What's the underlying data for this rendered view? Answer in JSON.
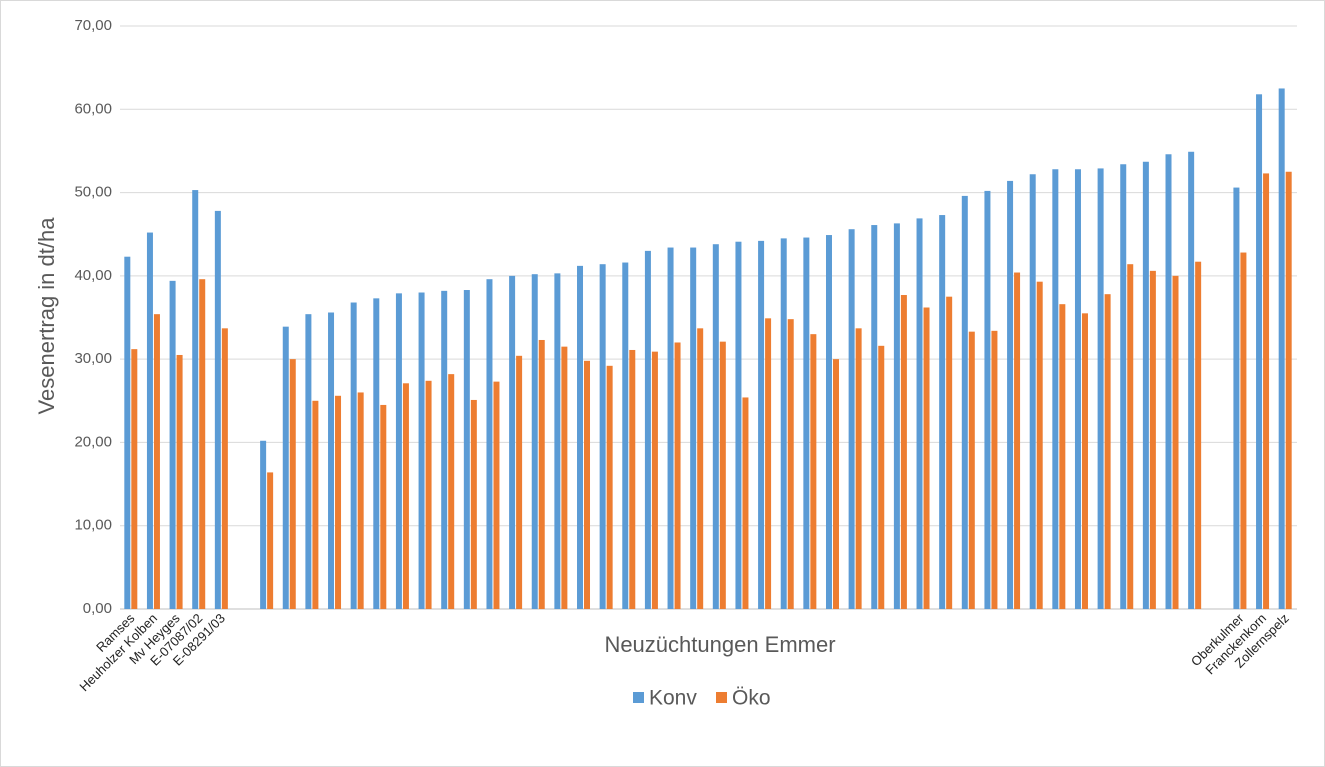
{
  "chart_data": {
    "type": "bar",
    "x_label": "Neuzüchtungen Emmer",
    "y_label": "Vesenertrag in dt/ha",
    "categories": [
      "Ramses",
      "Heuholzer Kolben",
      "Mv Heyges",
      "E-07087/02",
      "E-08291/03",
      null,
      null,
      null,
      null,
      null,
      null,
      null,
      null,
      null,
      null,
      null,
      null,
      null,
      null,
      null,
      null,
      null,
      null,
      null,
      null,
      null,
      null,
      null,
      null,
      null,
      null,
      null,
      null,
      null,
      null,
      null,
      null,
      null,
      null,
      null,
      null,
      null,
      null,
      null,
      null,
      null,
      null,
      null,
      null,
      "Oberkulmer",
      "Franckenkorn",
      "Zollernspelz"
    ],
    "series": [
      {
        "name": "Konv",
        "color": "#5b9bd5",
        "values": [
          42.3,
          45.2,
          39.4,
          50.3,
          47.8,
          null,
          20.2,
          33.9,
          35.4,
          35.6,
          36.8,
          37.3,
          37.9,
          38.0,
          38.2,
          38.3,
          39.6,
          40.0,
          40.2,
          40.3,
          41.2,
          41.4,
          41.6,
          43.0,
          43.4,
          43.4,
          43.8,
          44.1,
          44.2,
          44.5,
          44.6,
          44.9,
          45.6,
          46.1,
          46.3,
          46.9,
          47.3,
          49.6,
          50.2,
          51.4,
          52.2,
          52.8,
          52.8,
          52.9,
          53.4,
          53.7,
          54.6,
          54.9,
          null,
          50.6,
          61.8,
          62.5
        ]
      },
      {
        "name": "Öko",
        "color": "#ed7d31",
        "values": [
          31.2,
          35.4,
          30.5,
          39.6,
          33.7,
          null,
          16.4,
          30.0,
          25.0,
          25.6,
          26.0,
          24.5,
          27.1,
          27.4,
          28.2,
          25.1,
          27.3,
          30.4,
          32.3,
          31.5,
          29.8,
          29.2,
          31.1,
          30.9,
          32.0,
          33.7,
          32.1,
          25.4,
          34.9,
          34.8,
          33.0,
          30.0,
          33.7,
          31.6,
          37.7,
          36.2,
          37.5,
          33.3,
          33.4,
          40.4,
          39.3,
          36.6,
          35.5,
          37.8,
          41.4,
          40.6,
          40.0,
          41.7,
          null,
          42.8,
          52.3,
          52.5
        ]
      }
    ],
    "ylim": [
      0,
      70
    ],
    "yticks": [
      {
        "value": 0,
        "label": "0,00"
      },
      {
        "value": 10,
        "label": "10,00"
      },
      {
        "value": 20,
        "label": "20,00"
      },
      {
        "value": 30,
        "label": "30,00"
      },
      {
        "value": 40,
        "label": "40,00"
      },
      {
        "value": 50,
        "label": "50,00"
      },
      {
        "value": 60,
        "label": "60,00"
      },
      {
        "value": 70,
        "label": "70,00"
      }
    ],
    "grid": true,
    "legend": "bottom"
  }
}
